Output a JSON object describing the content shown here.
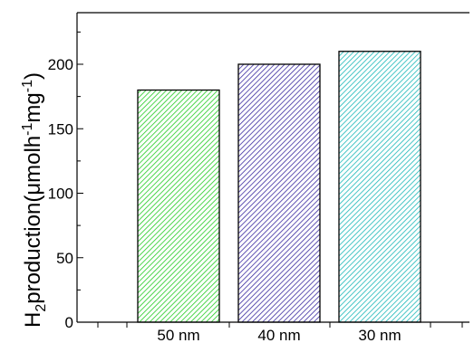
{
  "chart_data": {
    "type": "bar",
    "categories": [
      "50 nm",
      "40 nm",
      "30 nm"
    ],
    "values": [
      180,
      200,
      210
    ],
    "xlabel": "",
    "ylabel_main": "H",
    "ylabel_sub": "2",
    "ylabel_mid": "production(μmolh",
    "ylabel_exp1": "-1",
    "ylabel_mid2": "mg",
    "ylabel_exp2": "-1",
    "ylabel_end": ")",
    "ylim": [
      0,
      240
    ],
    "yticks": [
      0,
      50,
      100,
      150,
      200
    ],
    "ytick_labels": [
      "0",
      "50",
      "100",
      "150",
      "200"
    ],
    "bar_colors": [
      "#22cc22",
      "#3a2aa0",
      "#1ab8b8"
    ],
    "bar_fill_pattern": "diagonal-hatch",
    "grid": false,
    "legend": "none"
  }
}
